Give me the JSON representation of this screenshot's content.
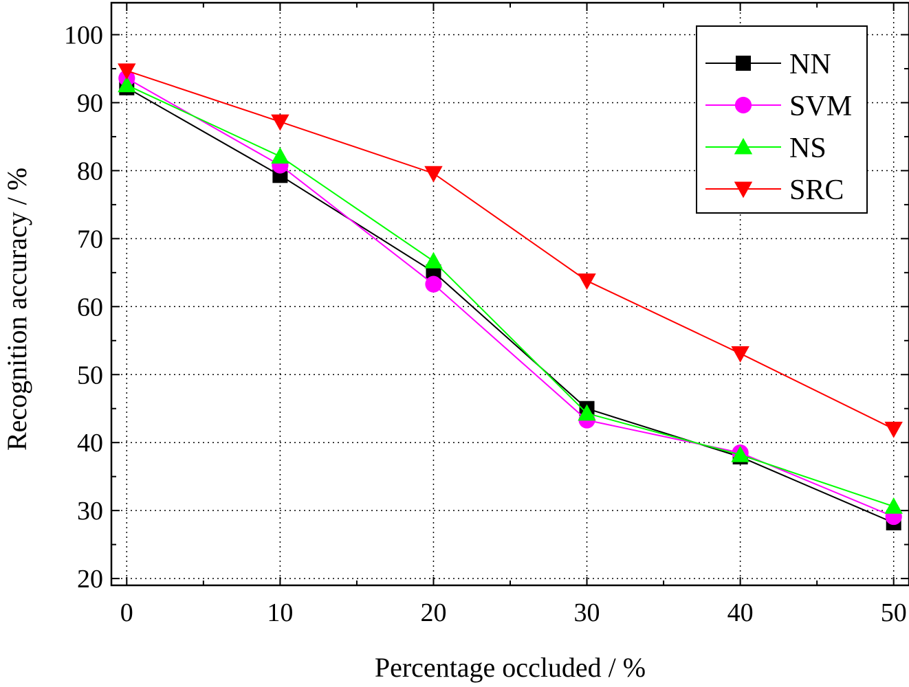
{
  "chart_data": {
    "type": "line",
    "title": "",
    "xlabel": "Percentage occluded / %",
    "ylabel": "Recognition accuracy / %",
    "xlim": [
      -1,
      51
    ],
    "ylim": [
      19,
      104.7
    ],
    "x": [
      0,
      10,
      20,
      30,
      40,
      50
    ],
    "xticks": [
      0,
      10,
      20,
      30,
      40,
      50
    ],
    "yticks": [
      20,
      30,
      40,
      50,
      60,
      70,
      80,
      90,
      100
    ],
    "grid": true,
    "legend_position": "top-right",
    "series": [
      {
        "name": "NN",
        "color": "#000000",
        "marker": "square",
        "values": [
          92.2,
          79.3,
          65.1,
          45.0,
          37.9,
          28.2
        ]
      },
      {
        "name": "SVM",
        "color": "#ff00ff",
        "marker": "circle",
        "values": [
          93.6,
          80.8,
          63.3,
          43.3,
          38.5,
          29.1
        ]
      },
      {
        "name": "NS",
        "color": "#00ff00",
        "marker": "triangle-up",
        "values": [
          92.6,
          82.1,
          66.7,
          44.3,
          38.2,
          30.6
        ]
      },
      {
        "name": "SRC",
        "color": "#ff0000",
        "marker": "triangle-down",
        "values": [
          94.7,
          87.2,
          79.6,
          63.8,
          53.1,
          42.0
        ]
      }
    ]
  }
}
